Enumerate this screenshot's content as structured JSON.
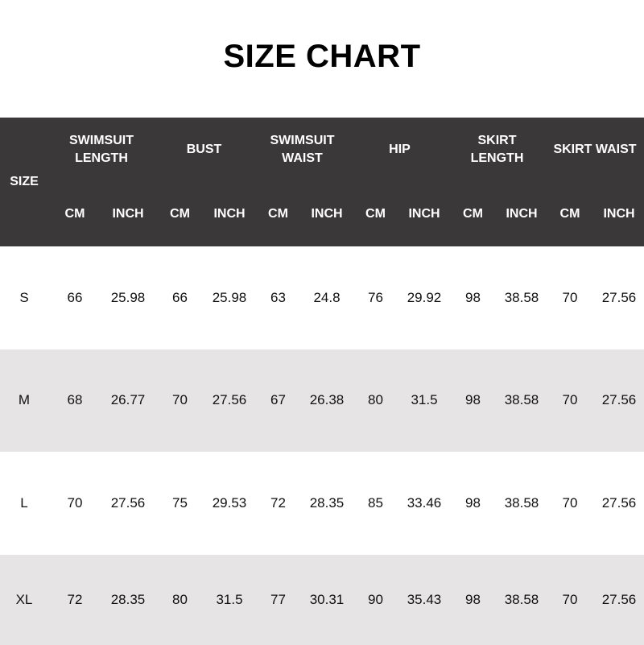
{
  "title": "SIZE CHART",
  "colors": {
    "header_bg": "#3a3839",
    "alt_row_bg": "#e6e4e5"
  },
  "header": {
    "size_label": "SIZE",
    "groups": [
      "SWIMSUIT\nLENGTH",
      "BUST",
      "SWIMSUIT\nWAIST",
      "HIP",
      "SKIRT\nLENGTH",
      "SKIRT WAIST"
    ],
    "units": [
      "CM",
      "INCH"
    ]
  },
  "rows": [
    {
      "size": "S",
      "values": [
        "66",
        "25.98",
        "66",
        "25.98",
        "63",
        "24.8",
        "76",
        "29.92",
        "98",
        "38.58",
        "70",
        "27.56"
      ]
    },
    {
      "size": "M",
      "values": [
        "68",
        "26.77",
        "70",
        "27.56",
        "67",
        "26.38",
        "80",
        "31.5",
        "98",
        "38.58",
        "70",
        "27.56"
      ]
    },
    {
      "size": "L",
      "values": [
        "70",
        "27.56",
        "75",
        "29.53",
        "72",
        "28.35",
        "85",
        "33.46",
        "98",
        "38.58",
        "70",
        "27.56"
      ]
    },
    {
      "size": "XL",
      "values": [
        "72",
        "28.35",
        "80",
        "31.5",
        "77",
        "30.31",
        "90",
        "35.43",
        "98",
        "38.58",
        "70",
        "27.56"
      ]
    }
  ]
}
